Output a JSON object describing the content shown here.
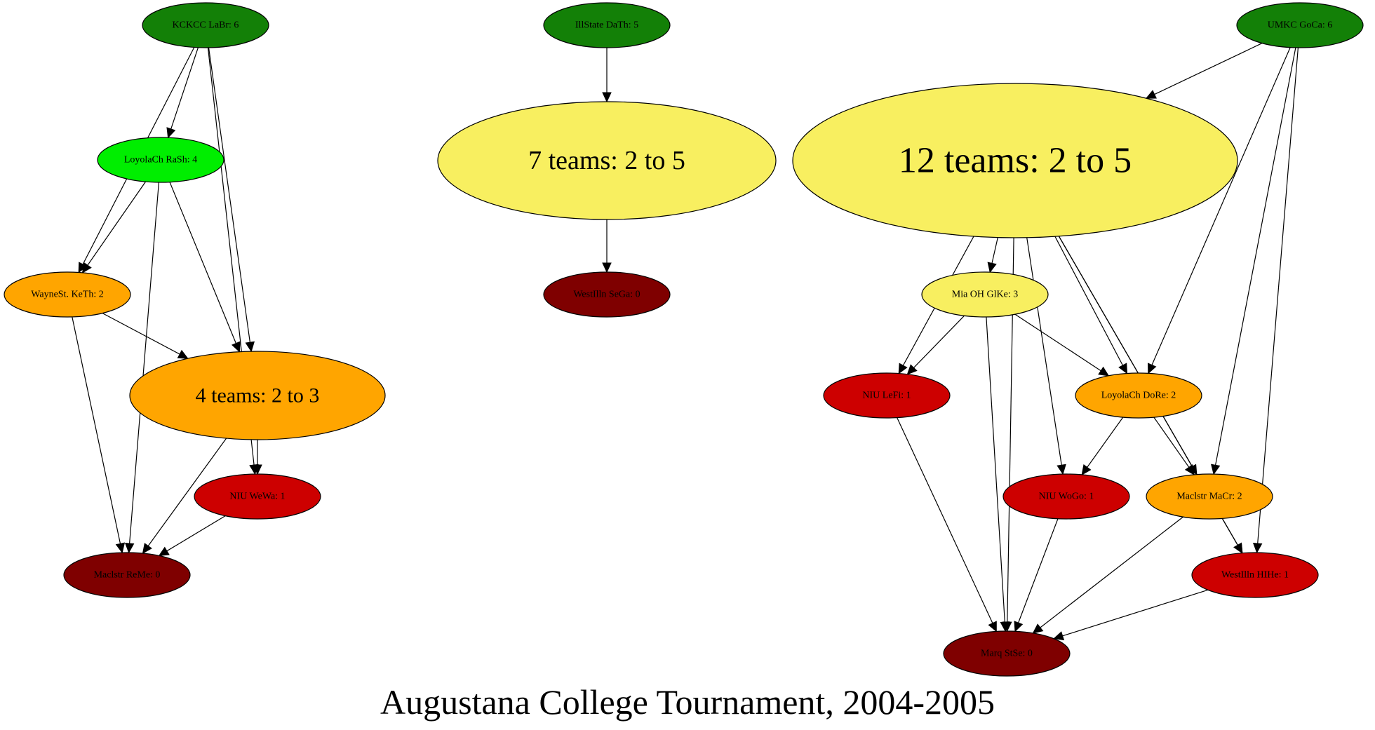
{
  "title": "Augustana College Tournament, 2004-2005",
  "colors": {
    "dark_green": "#138007",
    "bright_green": "#00ee00",
    "yellow": "#f8ef60",
    "orange": "#ffa500",
    "red": "#cd0000",
    "dark_red": "#7f0000"
  },
  "nodes": [
    {
      "id": "kckcc",
      "label": "KCKCC LaBr: 6",
      "color": "dark_green"
    },
    {
      "id": "illstate",
      "label": "IllState DaTh: 5",
      "color": "dark_green"
    },
    {
      "id": "umkc",
      "label": "UMKC GoCa: 6",
      "color": "dark_green"
    },
    {
      "id": "loyola_rash",
      "label": "LoyolaCh RaSh: 4",
      "color": "bright_green"
    },
    {
      "id": "seven_teams",
      "label": "7 teams: 2 to 5",
      "color": "yellow"
    },
    {
      "id": "twelve_teams",
      "label": "12 teams: 2 to 5",
      "color": "yellow"
    },
    {
      "id": "wayne",
      "label": "WayneSt. KeTh: 2",
      "color": "orange"
    },
    {
      "id": "westill_sega",
      "label": "WestIlln SeGa: 0",
      "color": "dark_red"
    },
    {
      "id": "miaoh",
      "label": "Mia OH GlKe: 3",
      "color": "yellow"
    },
    {
      "id": "four_teams",
      "label": "4 teams: 2 to 3",
      "color": "orange"
    },
    {
      "id": "niu_lefi",
      "label": "NIU LeFi: 1",
      "color": "red"
    },
    {
      "id": "loyola_dore",
      "label": "LoyolaCh DoRe: 2",
      "color": "orange"
    },
    {
      "id": "niu_wewa",
      "label": "NIU WeWa: 1",
      "color": "red"
    },
    {
      "id": "niu_wogo",
      "label": "NIU WoGo: 1",
      "color": "red"
    },
    {
      "id": "maclstr_macr",
      "label": "Maclstr MaCr: 2",
      "color": "orange"
    },
    {
      "id": "maclstr_reme",
      "label": "Maclstr ReMe: 0",
      "color": "dark_red"
    },
    {
      "id": "westill_hihe",
      "label": "WestIlln HIHe: 1",
      "color": "red"
    },
    {
      "id": "marq",
      "label": "Marq StSe: 0",
      "color": "dark_red"
    }
  ],
  "edges": [
    [
      "kckcc",
      "loyola_rash"
    ],
    [
      "kckcc",
      "wayne"
    ],
    [
      "kckcc",
      "four_teams"
    ],
    [
      "kckcc",
      "niu_wewa"
    ],
    [
      "loyola_rash",
      "wayne"
    ],
    [
      "loyola_rash",
      "four_teams"
    ],
    [
      "loyola_rash",
      "maclstr_reme"
    ],
    [
      "wayne",
      "four_teams"
    ],
    [
      "wayne",
      "maclstr_reme"
    ],
    [
      "four_teams",
      "niu_wewa"
    ],
    [
      "four_teams",
      "maclstr_reme"
    ],
    [
      "niu_wewa",
      "maclstr_reme"
    ],
    [
      "illstate",
      "seven_teams"
    ],
    [
      "seven_teams",
      "westill_sega"
    ],
    [
      "umkc",
      "twelve_teams"
    ],
    [
      "umkc",
      "loyola_dore"
    ],
    [
      "umkc",
      "maclstr_macr"
    ],
    [
      "umkc",
      "westill_hihe"
    ],
    [
      "twelve_teams",
      "miaoh"
    ],
    [
      "twelve_teams",
      "niu_lefi"
    ],
    [
      "twelve_teams",
      "loyola_dore"
    ],
    [
      "twelve_teams",
      "niu_wogo"
    ],
    [
      "twelve_teams",
      "maclstr_macr"
    ],
    [
      "twelve_teams",
      "westill_hihe"
    ],
    [
      "twelve_teams",
      "marq"
    ],
    [
      "miaoh",
      "niu_lefi"
    ],
    [
      "miaoh",
      "loyola_dore"
    ],
    [
      "miaoh",
      "marq"
    ],
    [
      "loyola_dore",
      "niu_wogo"
    ],
    [
      "loyola_dore",
      "maclstr_macr"
    ],
    [
      "maclstr_macr",
      "westill_hihe"
    ],
    [
      "maclstr_macr",
      "marq"
    ],
    [
      "niu_lefi",
      "marq"
    ],
    [
      "niu_wogo",
      "marq"
    ],
    [
      "westill_hihe",
      "marq"
    ]
  ]
}
